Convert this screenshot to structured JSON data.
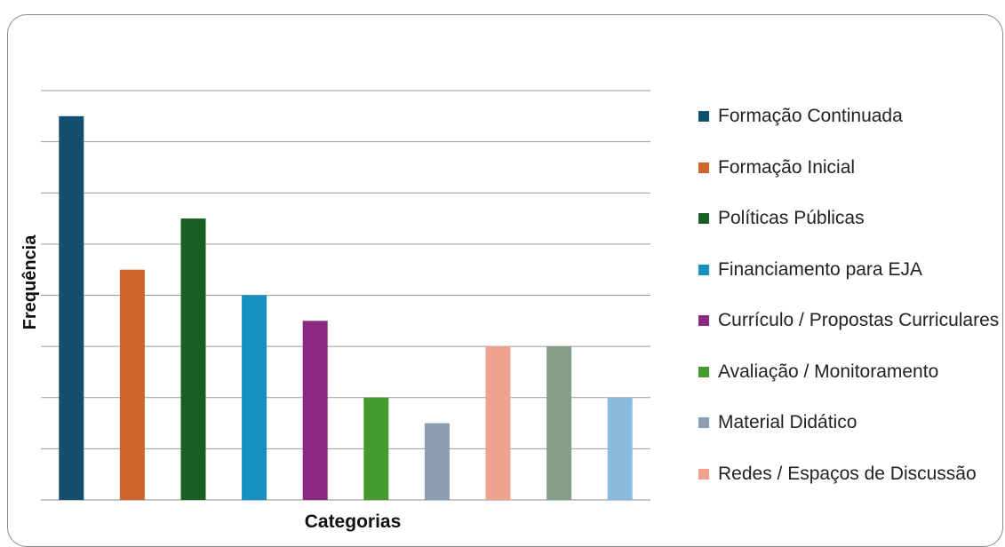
{
  "chart_data": {
    "type": "bar",
    "title": "",
    "xlabel": "Categorias",
    "ylabel": "Frequência",
    "ylim": [
      0,
      8
    ],
    "y_ticks": [
      0,
      1,
      2,
      3,
      4,
      5,
      6,
      7,
      8
    ],
    "grid": true,
    "legend_position": "right",
    "categories": [
      "Formação Continuada",
      "Formação Inicial",
      "Políticas Públicas",
      "Financiamento para EJA",
      "Currículo / Propostas Curriculares",
      "Avaliação / Monitoramento",
      "Material Didático",
      "Redes / Espaços de Discussão",
      "",
      ""
    ],
    "values": [
      7.5,
      4.5,
      5.5,
      4,
      3.5,
      2,
      1.5,
      3,
      3,
      2
    ],
    "colors": [
      "#14506E",
      "#D0652C",
      "#1B5E24",
      "#168FC1",
      "#8A2882",
      "#459A2C",
      "#8A9EAF",
      "#EEA38F",
      "#879F87",
      "#88BBDD"
    ],
    "legend": [
      {
        "label": "Formação Continuada",
        "color": "#14506E"
      },
      {
        "label": "Formação Inicial",
        "color": "#D0652C"
      },
      {
        "label": "Políticas Públicas",
        "color": "#1B5E24"
      },
      {
        "label": "Financiamento para EJA",
        "color": "#168FC1"
      },
      {
        "label": "Currículo / Propostas Curriculares",
        "color": "#8A2882"
      },
      {
        "label": "Avaliação / Monitoramento",
        "color": "#459A2C"
      },
      {
        "label": "Material Didático",
        "color": "#8A9EAF"
      },
      {
        "label": "Redes / Espaços de Discussão",
        "color": "#EEA38F"
      }
    ]
  }
}
